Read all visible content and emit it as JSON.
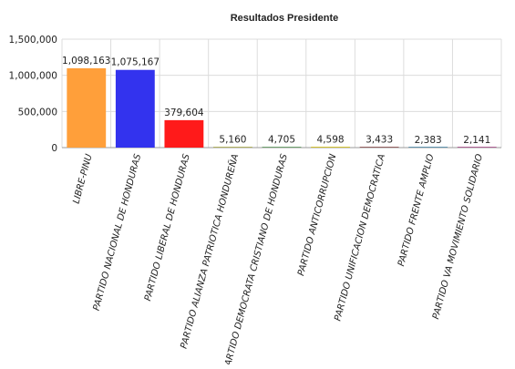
{
  "chart_data": {
    "type": "bar",
    "title": "Resultados Presidente",
    "xlabel": "",
    "ylabel": "",
    "ylim": [
      0,
      1500000
    ],
    "y_ticks": [
      0,
      500000,
      1000000,
      1500000
    ],
    "y_tick_labels": [
      "0",
      "500,000",
      "1,000,000",
      "1,500,000"
    ],
    "grid": true,
    "legend": "none",
    "categories": [
      "LIBRE-PINU",
      "PARTIDO NACIONAL DE HONDURAS",
      "PARTIDO LIBERAL DE HONDURAS",
      "PARTIDO ALIANZA PATRIOTICA HONDUREÑA",
      "PARTIDO DEMOCRATA CRISTIANO DE HONDURAS",
      "PARTIDO ANTICORRUPCION",
      "PARTIDO UNIFICACION DEMOCRATICA",
      "PARTIDO FRENTE AMPLIO",
      "PARTIDO VA MOVIMIENTO SOLIDARIO"
    ],
    "values": [
      1098163,
      1075167,
      379604,
      5160,
      4705,
      4598,
      3433,
      2383,
      2141
    ],
    "value_labels": [
      "1,098,163",
      "1,075,167",
      "379,604",
      "5,160",
      "4,705",
      "4,598",
      "3,433",
      "2,383",
      "2,141"
    ],
    "colors": [
      "#FF9F3A",
      "#3333EE",
      "#FF1A1A",
      "#9e9e3a",
      "#4a8a4a",
      "#c8b400",
      "#7a3a3a",
      "#3a7a9a",
      "#9a3a7a"
    ]
  }
}
